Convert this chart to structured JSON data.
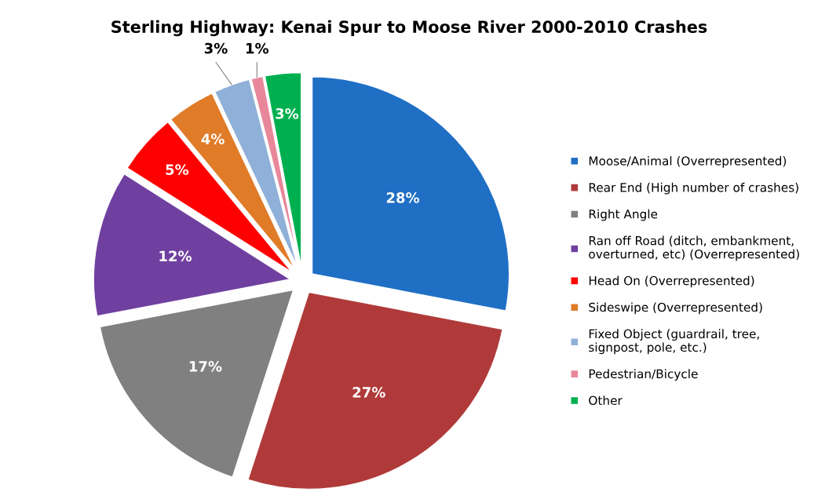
{
  "chart_data": {
    "type": "pie",
    "title": "Sterling Highway: Kenai Spur to Moose River 2000-2010 Crashes",
    "categories": [
      "Moose/Animal (Overrepresented)",
      "Rear End (High number of crashes)",
      "Right Angle",
      "Ran off Road (ditch, embankment,\noverturned, etc) (Overrepresented)",
      "Head On (Overrepresented)",
      "Sideswipe (Overrepresented)",
      "Fixed Object (guardrail, tree,\nsignpost, pole, etc.)",
      "Pedestrian/Bicycle",
      "Other"
    ],
    "values": [
      28,
      27,
      17,
      12,
      5,
      4,
      3,
      1,
      3
    ],
    "value_labels": [
      "28%",
      "27%",
      "17%",
      "12%",
      "5%",
      "4%",
      "3%",
      "1%",
      "3%"
    ],
    "colors": [
      "#1f6fc5",
      "#b03a3a",
      "#808080",
      "#7040a0",
      "#ff0000",
      "#e07b28",
      "#8fb0d8",
      "#e8879a",
      "#00b050"
    ],
    "legend": "right"
  }
}
